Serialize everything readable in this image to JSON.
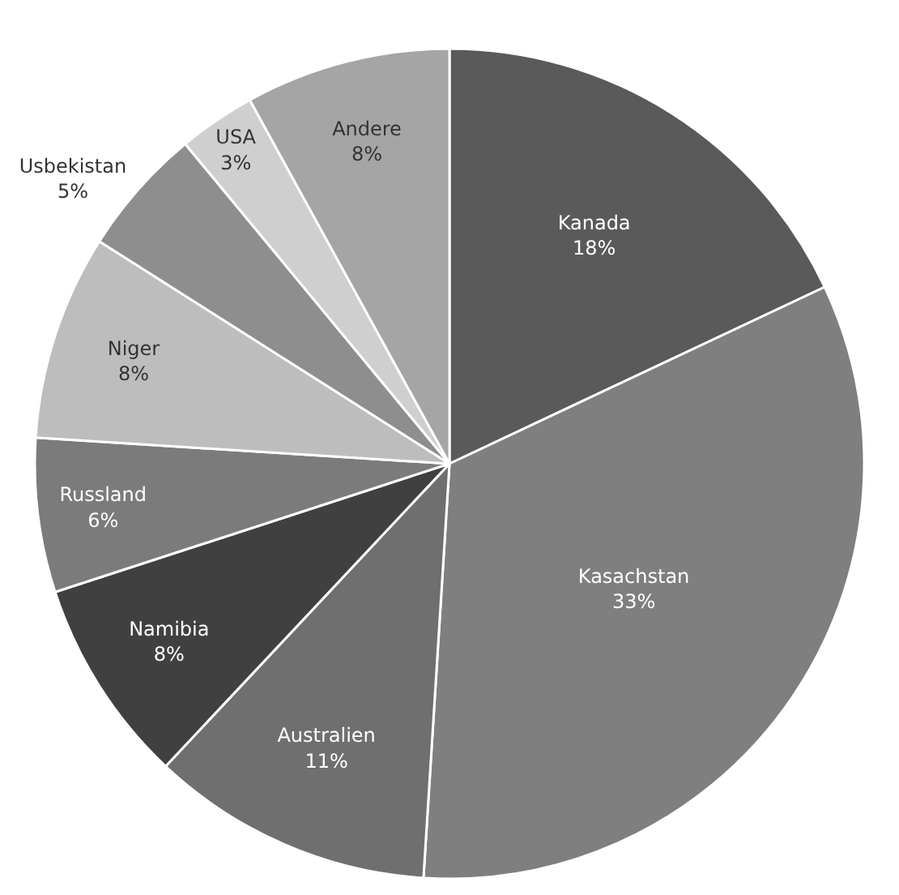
{
  "chart_data": {
    "type": "pie",
    "categories": [
      "Kanada",
      "Kasachstan",
      "Australien",
      "Namibia",
      "Russland",
      "Niger",
      "Usbekistan",
      "USA",
      "Andere"
    ],
    "values": [
      18,
      33,
      11,
      8,
      6,
      8,
      5,
      3,
      8
    ],
    "value_labels": [
      "18%",
      "33%",
      "11%",
      "8%",
      "6%",
      "8%",
      "5%",
      "3%",
      "8%"
    ],
    "colors": [
      "#5a5a5a",
      "#7f7f7f",
      "#6f6f6f",
      "#404040",
      "#7b7b7b",
      "#bdbdbd",
      "#8e8e8e",
      "#cfcfcf",
      "#a5a5a5"
    ],
    "legend": false
  }
}
